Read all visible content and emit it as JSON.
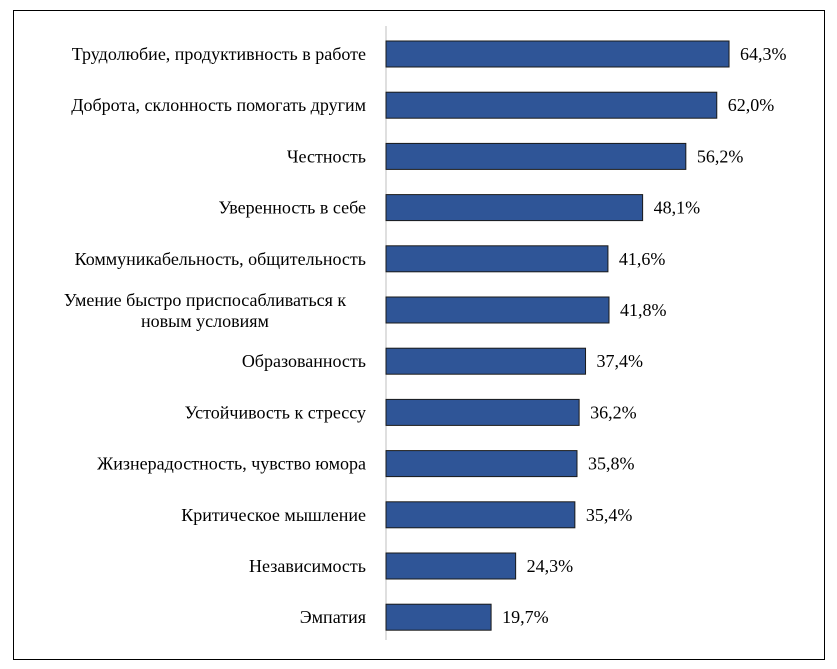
{
  "chart_data": {
    "type": "bar",
    "orientation": "horizontal",
    "title": "",
    "xlabel": "",
    "ylabel": "",
    "categories": [
      "Трудолюбие, продуктивность в работе",
      "Доброта, склонность помогать другим",
      "Честность",
      "Уверенность в себе",
      "Коммуникабельность, общительность",
      "Умение быстро приспосабливаться к новым условиям",
      "Образованность",
      "Устойчивость к стрессу",
      "Жизнерадостность, чувство юмора",
      "Критическое мышление",
      "Независимость",
      "Эмпатия"
    ],
    "category_lines": [
      [
        "Трудолюбие, продуктивность в работе"
      ],
      [
        "Доброта, склонность помогать другим"
      ],
      [
        "Честность"
      ],
      [
        "Уверенность в себе"
      ],
      [
        "Коммуникабельность, общительность"
      ],
      [
        "Умение быстро приспосабливаться к",
        "новым условиям"
      ],
      [
        "Образованность"
      ],
      [
        "Устойчивость к стрессу"
      ],
      [
        "Жизнерадостность, чувство юмора"
      ],
      [
        "Критическое мышление"
      ],
      [
        "Независимость"
      ],
      [
        "Эмпатия"
      ]
    ],
    "values": [
      64.3,
      62.0,
      56.2,
      48.1,
      41.6,
      41.8,
      37.4,
      36.2,
      35.8,
      35.4,
      24.3,
      19.7
    ],
    "value_labels": [
      "64,3%",
      "62,0%",
      "56,2%",
      "48,1%",
      "41,6%",
      "41,8%",
      "37,4%",
      "36,2%",
      "35,8%",
      "35,4%",
      "24,3%",
      "19,7%"
    ],
    "xlim": [
      0,
      70
    ],
    "grid": false,
    "legend": "none",
    "colors": {
      "bar_fill": "#2F5597",
      "bar_stroke": "#1a1a1a",
      "axis": "#bfbfbf",
      "frame": "#000000"
    }
  }
}
